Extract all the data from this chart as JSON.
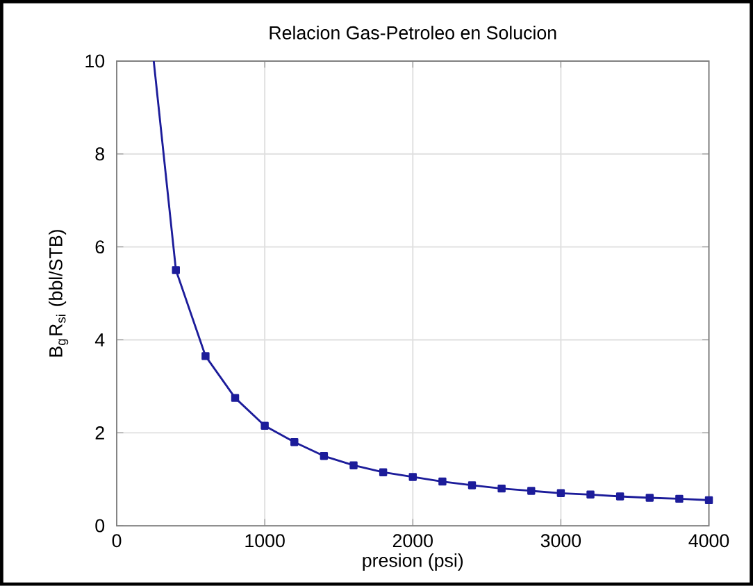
{
  "chart_data": {
    "type": "line",
    "title": "Relacion Gas-Petroleo en Solucion",
    "xlabel": "presion (psi)",
    "ylabel": "B$_{g}$R$_{si}$ (bbl/STB)",
    "xlim": [
      0,
      4000
    ],
    "ylim": [
      0,
      10
    ],
    "xticks": [
      0,
      1000,
      2000,
      3000,
      4000
    ],
    "yticks": [
      0,
      2,
      4,
      6,
      8,
      10
    ],
    "grid": true,
    "line_style": "solid",
    "series": [
      {
        "color": "#1c1c9a",
        "marker": "square",
        "x": [
          400,
          600,
          800,
          1000,
          1200,
          1400,
          1600,
          1800,
          2000,
          2200,
          2400,
          2600,
          2800,
          3000,
          3200,
          3400,
          3600,
          3800,
          4000
        ],
        "values": [
          5.5,
          3.65,
          2.75,
          2.15,
          1.8,
          1.5,
          1.3,
          1.15,
          1.05,
          0.95,
          0.87,
          0.8,
          0.75,
          0.7,
          0.67,
          0.63,
          0.6,
          0.58,
          0.55
        ]
      },
      {
        "color": "#1c1c9a",
        "marker": "none",
        "x": [
          250,
          400
        ],
        "values": [
          10,
          5.5
        ]
      }
    ]
  }
}
